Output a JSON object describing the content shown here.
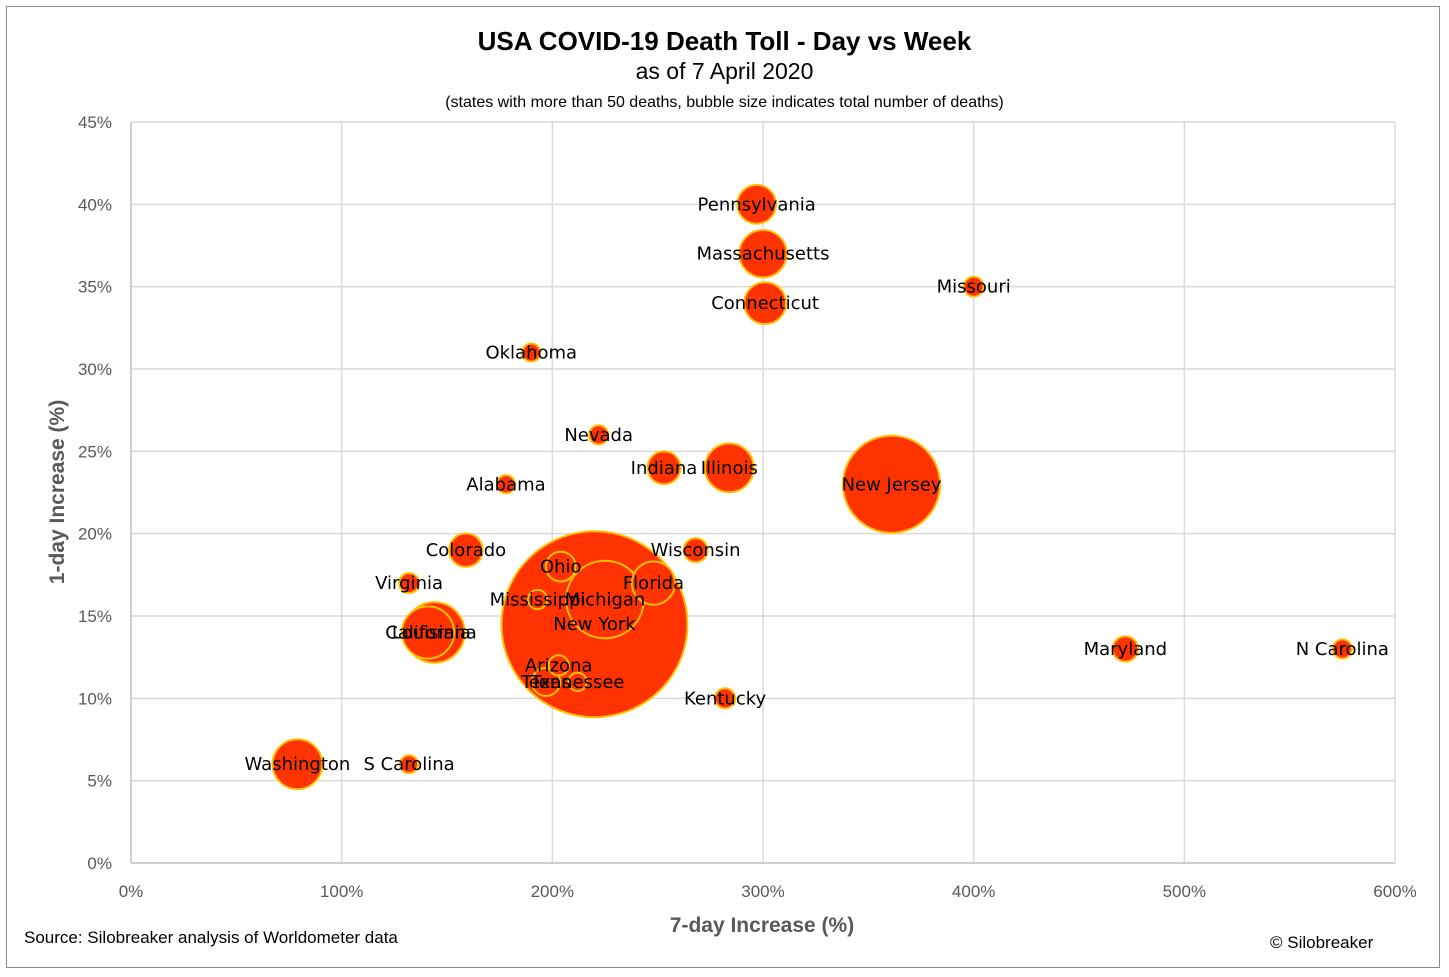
{
  "chart_data": {
    "type": "scatter",
    "variant": "bubble",
    "title": "USA COVID-19 Death Toll - Day vs Week",
    "subtitle": "as of 7 April 2020",
    "note": "(states with more than 50 deaths, bubble size indicates total number of deaths)",
    "xlabel": "7-day Increase (%)",
    "ylabel": "1-day Increase (%)",
    "xlim": [
      0,
      600
    ],
    "ylim": [
      0,
      45
    ],
    "xticks": [
      "0%",
      "100%",
      "200%",
      "300%",
      "400%",
      "500%",
      "600%"
    ],
    "yticks": [
      "0%",
      "5%",
      "10%",
      "15%",
      "20%",
      "25%",
      "30%",
      "35%",
      "40%",
      "45%"
    ],
    "grid": true,
    "colors": {
      "fill": "#ff3300",
      "stroke": "#ffc000",
      "grid": "#d9d9d9"
    },
    "points": [
      {
        "label": "New York",
        "x": 220,
        "y": 14.5,
        "size": 5500
      },
      {
        "label": "New Jersey",
        "x": 361,
        "y": 23,
        "size": 1504
      },
      {
        "label": "Michigan",
        "x": 225,
        "y": 16,
        "size": 959
      },
      {
        "label": "Louisiana",
        "x": 144,
        "y": 14,
        "size": 582
      },
      {
        "label": "California",
        "x": 141,
        "y": 14,
        "size": 432
      },
      {
        "label": "Illinois",
        "x": 284,
        "y": 24,
        "size": 380
      },
      {
        "label": "Massachusetts",
        "x": 300,
        "y": 37,
        "size": 356
      },
      {
        "label": "Washington",
        "x": 79,
        "y": 6,
        "size": 394
      },
      {
        "label": "Florida",
        "x": 248,
        "y": 17,
        "size": 296
      },
      {
        "label": "Pennsylvania",
        "x": 297,
        "y": 40,
        "size": 240
      },
      {
        "label": "Connecticut",
        "x": 301,
        "y": 34,
        "size": 277
      },
      {
        "label": "Ohio",
        "x": 204,
        "y": 18,
        "size": 142
      },
      {
        "label": "Colorado",
        "x": 159,
        "y": 19,
        "size": 179
      },
      {
        "label": "Indiana",
        "x": 253,
        "y": 24,
        "size": 173
      },
      {
        "label": "Texas",
        "x": 197,
        "y": 11,
        "size": 126
      },
      {
        "label": "Maryland",
        "x": 472,
        "y": 13,
        "size": 103
      },
      {
        "label": "Arizona",
        "x": 203,
        "y": 12,
        "size": 65
      },
      {
        "label": "Wisconsin",
        "x": 268,
        "y": 19,
        "size": 92
      },
      {
        "label": "Missouri",
        "x": 400,
        "y": 35,
        "size": 62
      },
      {
        "label": "Mississippi",
        "x": 193,
        "y": 16,
        "size": 59
      },
      {
        "label": "Tennessee",
        "x": 212,
        "y": 11,
        "size": 53
      },
      {
        "label": "Kentucky",
        "x": 282,
        "y": 10,
        "size": 65
      },
      {
        "label": "Virginia",
        "x": 132,
        "y": 17,
        "size": 63
      },
      {
        "label": "Nevada",
        "x": 222,
        "y": 26,
        "size": 58
      },
      {
        "label": "Oklahoma",
        "x": 190,
        "y": 31,
        "size": 51
      },
      {
        "label": "Alabama",
        "x": 178,
        "y": 23,
        "size": 53
      },
      {
        "label": "S Carolina",
        "x": 132,
        "y": 6,
        "size": 51
      },
      {
        "label": "N Carolina",
        "x": 575,
        "y": 13,
        "size": 59
      }
    ]
  },
  "footer": {
    "source": "Source: Silobreaker analysis of Worldometer data",
    "copyright": "© Silobreaker"
  }
}
